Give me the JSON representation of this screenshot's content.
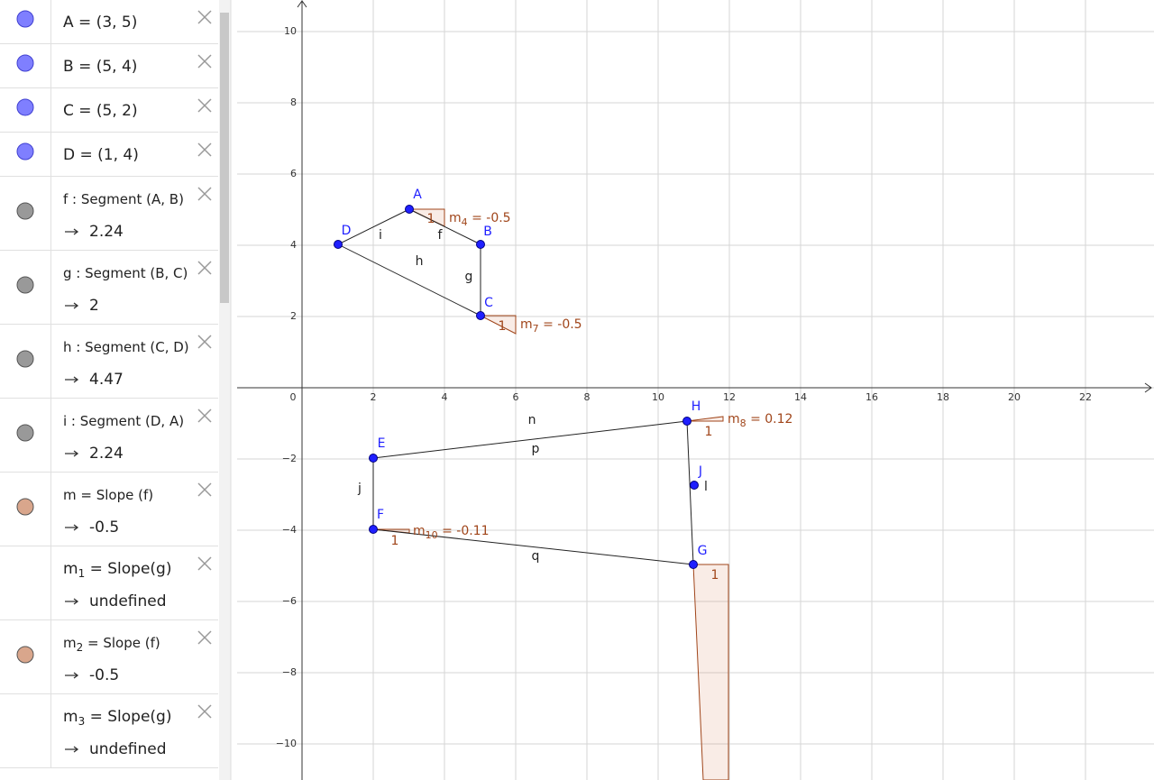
{
  "algebra": [
    {
      "text": "A = (3, 5)",
      "color": "#7f7fff"
    },
    {
      "text": "B = (5, 4)",
      "color": "#7f7fff"
    },
    {
      "text": "C = (5, 2)",
      "color": "#7f7fff"
    },
    {
      "text": "D = (1, 4)",
      "color": "#7f7fff"
    },
    {
      "text": "f : Segment (A, B)",
      "value": "2.24",
      "color": "#999999"
    },
    {
      "text": "g : Segment (B, C)",
      "value": "2",
      "color": "#999999"
    },
    {
      "text": "h : Segment (C, D)",
      "value": "4.47",
      "color": "#999999"
    },
    {
      "text": "i : Segment (D, A)",
      "value": "2.24",
      "color": "#999999"
    },
    {
      "text": "m = Slope (f)",
      "value": "-0.5",
      "color": "#d9a68c"
    },
    {
      "text": "m",
      "sub": "1",
      "rest": " = Slope(g)",
      "value": "undefined"
    },
    {
      "text": "m",
      "sub": "2",
      "rest": " = Slope (f)",
      "value": "-0.5",
      "color": "#d9a68c"
    },
    {
      "text": "m",
      "sub": "3",
      "rest": " = Slope(g)",
      "value": "undefined"
    }
  ],
  "graphics": {
    "x_tick_labels": [
      "0",
      "2",
      "4",
      "6",
      "8",
      "10",
      "12",
      "14",
      "16",
      "18",
      "20",
      "22"
    ],
    "y_tick_labels": [
      "10",
      "8",
      "6",
      "4",
      "2",
      "−2",
      "−4",
      "−6",
      "−8",
      "−10"
    ],
    "points": [
      "A",
      "B",
      "C",
      "D",
      "E",
      "F",
      "G",
      "H",
      "J"
    ],
    "segments": [
      "i",
      "f",
      "h",
      "g",
      "n",
      "p",
      "j",
      "q",
      "l"
    ],
    "slopes": [
      {
        "name": "m",
        "sub": "4",
        "rest": " = -0.5",
        "run": "1"
      },
      {
        "name": "m",
        "sub": "7",
        "rest": " = -0.5",
        "run": "1"
      },
      {
        "name": "m",
        "sub": "8",
        "rest": " = 0.12",
        "run": "1"
      },
      {
        "name": "m",
        "sub": "10",
        "rest": " = -0.11",
        "run": "1"
      },
      {
        "run": "1"
      }
    ]
  }
}
